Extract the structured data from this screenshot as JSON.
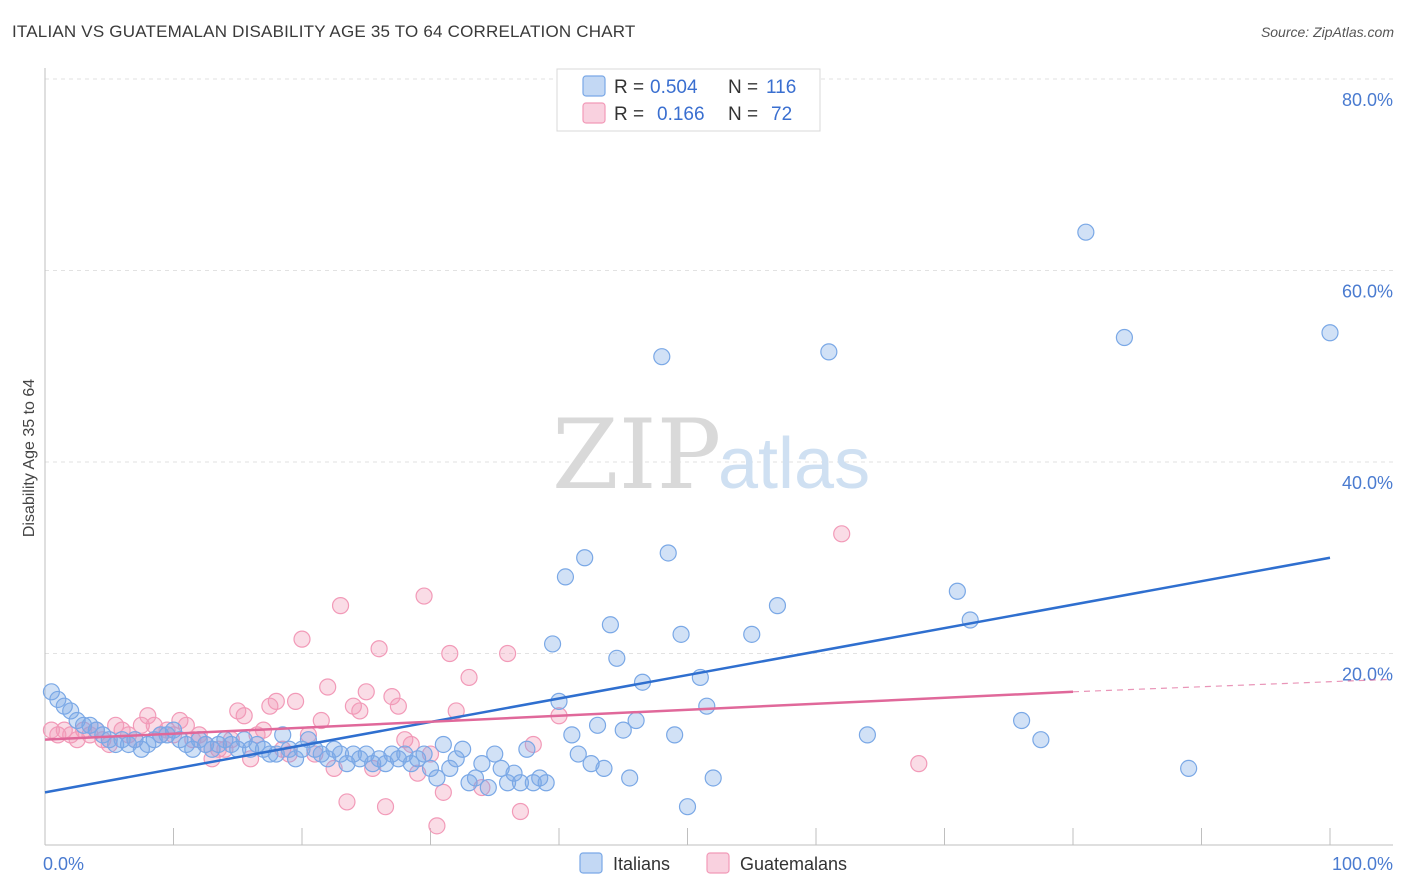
{
  "title": "ITALIAN VS GUATEMALAN DISABILITY AGE 35 TO 64 CORRELATION CHART",
  "source": "Source: ZipAtlas.com",
  "watermark": {
    "zip": "ZIP",
    "atlas": "atlas"
  },
  "colors": {
    "italians": "#7aa8e6",
    "italians_line": "#2f6fcf",
    "guatemalans": "#f29ab8",
    "guatemalans_line": "#e0689a",
    "grid": "#e2e2e2",
    "tick_label": "#4a7bd0"
  },
  "legend": {
    "rows": [
      {
        "r_label": "R =",
        "r_value": "0.504",
        "n_label": "N =",
        "n_value": "116"
      },
      {
        "r_label": "R =",
        "r_value": "0.166",
        "n_label": "N =",
        "n_value": "72"
      }
    ]
  },
  "chart_data": {
    "type": "scatter",
    "title": "ITALIAN VS GUATEMALAN DISABILITY AGE 35 TO 64 CORRELATION CHART",
    "ylabel": "Disability Age 35 to 64",
    "xlabel": "",
    "xlim": [
      0,
      100
    ],
    "ylim": [
      0,
      80
    ],
    "x_ticks": [
      "0.0%",
      "100.0%"
    ],
    "y_ticks": [
      {
        "value": 20,
        "label": "20.0%"
      },
      {
        "value": 40,
        "label": "40.0%"
      },
      {
        "value": 60,
        "label": "60.0%"
      },
      {
        "value": 80,
        "label": "80.0%"
      }
    ],
    "grid": true,
    "legend_position": "top-center",
    "series": [
      {
        "name": "Italians",
        "trend": {
          "x": [
            0,
            100
          ],
          "y": [
            5.5,
            30.0
          ]
        },
        "points": [
          [
            0.5,
            16.0
          ],
          [
            1,
            15.2
          ],
          [
            1.5,
            14.5
          ],
          [
            2,
            14.0
          ],
          [
            2.5,
            13.0
          ],
          [
            3,
            12.5
          ],
          [
            3.5,
            12.5
          ],
          [
            4,
            12.0
          ],
          [
            4.5,
            11.5
          ],
          [
            5,
            11.0
          ],
          [
            5.5,
            10.5
          ],
          [
            6,
            11.0
          ],
          [
            6.5,
            10.5
          ],
          [
            7,
            11.0
          ],
          [
            7.5,
            10.0
          ],
          [
            8,
            10.5
          ],
          [
            8.5,
            11.0
          ],
          [
            9,
            11.5
          ],
          [
            9.5,
            11.5
          ],
          [
            10,
            12.0
          ],
          [
            10.5,
            11.0
          ],
          [
            11,
            10.5
          ],
          [
            11.5,
            10.0
          ],
          [
            12,
            11.0
          ],
          [
            12.5,
            10.5
          ],
          [
            13,
            10.0
          ],
          [
            13.5,
            10.5
          ],
          [
            14,
            11.0
          ],
          [
            14.5,
            10.5
          ],
          [
            15,
            10.0
          ],
          [
            15.5,
            11.0
          ],
          [
            16,
            10.0
          ],
          [
            16.5,
            10.5
          ],
          [
            17,
            10.0
          ],
          [
            17.5,
            9.5
          ],
          [
            18,
            9.5
          ],
          [
            18.5,
            11.5
          ],
          [
            19,
            10.0
          ],
          [
            19.5,
            9.0
          ],
          [
            20,
            10.0
          ],
          [
            20.5,
            11.0
          ],
          [
            21,
            10.0
          ],
          [
            21.5,
            9.5
          ],
          [
            22,
            9.0
          ],
          [
            22.5,
            10.0
          ],
          [
            23,
            9.5
          ],
          [
            23.5,
            8.5
          ],
          [
            24,
            9.5
          ],
          [
            24.5,
            9.0
          ],
          [
            25,
            9.5
          ],
          [
            25.5,
            8.5
          ],
          [
            26,
            9.0
          ],
          [
            26.5,
            8.5
          ],
          [
            27,
            9.5
          ],
          [
            27.5,
            9.0
          ],
          [
            28,
            9.5
          ],
          [
            28.5,
            8.5
          ],
          [
            29,
            9.0
          ],
          [
            29.5,
            9.5
          ],
          [
            30,
            8.0
          ],
          [
            30.5,
            7.0
          ],
          [
            31,
            10.5
          ],
          [
            31.5,
            8.0
          ],
          [
            32,
            9.0
          ],
          [
            32.5,
            10.0
          ],
          [
            33,
            6.5
          ],
          [
            33.5,
            7.0
          ],
          [
            34,
            8.5
          ],
          [
            34.5,
            6.0
          ],
          [
            35,
            9.5
          ],
          [
            35.5,
            8.0
          ],
          [
            36,
            6.5
          ],
          [
            36.5,
            7.5
          ],
          [
            37,
            6.5
          ],
          [
            37.5,
            10.0
          ],
          [
            38,
            6.5
          ],
          [
            38.5,
            7.0
          ],
          [
            39,
            6.5
          ],
          [
            39.5,
            21.0
          ],
          [
            40,
            15.0
          ],
          [
            40.5,
            28.0
          ],
          [
            41,
            11.5
          ],
          [
            41.5,
            9.5
          ],
          [
            42,
            30.0
          ],
          [
            42.5,
            8.5
          ],
          [
            43,
            12.5
          ],
          [
            43.5,
            8.0
          ],
          [
            44,
            23.0
          ],
          [
            44.5,
            19.5
          ],
          [
            45,
            12.0
          ],
          [
            45.5,
            7.0
          ],
          [
            46,
            13.0
          ],
          [
            46.5,
            17.0
          ],
          [
            48,
            51.0
          ],
          [
            48.5,
            30.5
          ],
          [
            49,
            11.5
          ],
          [
            49.5,
            22.0
          ],
          [
            50,
            4.0
          ],
          [
            51,
            17.5
          ],
          [
            51.5,
            14.5
          ],
          [
            52,
            7.0
          ],
          [
            55,
            22.0
          ],
          [
            57,
            25.0
          ],
          [
            61,
            51.5
          ],
          [
            64,
            11.5
          ],
          [
            71,
            26.5
          ],
          [
            72,
            23.5
          ],
          [
            76,
            13.0
          ],
          [
            77.5,
            11.0
          ],
          [
            81,
            64.0
          ],
          [
            84,
            53.0
          ],
          [
            89,
            8.0
          ],
          [
            100,
            53.5
          ]
        ]
      },
      {
        "name": "Guatemalans",
        "trend": {
          "x": [
            0,
            80
          ],
          "y": [
            11.0,
            16.0
          ],
          "dashed_to": {
            "x": 100,
            "y": 17.3
          }
        },
        "points": [
          [
            0.5,
            12.0
          ],
          [
            1,
            11.5
          ],
          [
            1.5,
            12.0
          ],
          [
            2,
            11.5
          ],
          [
            2.5,
            11.0
          ],
          [
            3,
            12.0
          ],
          [
            3.5,
            11.5
          ],
          [
            4,
            12.0
          ],
          [
            4.5,
            11.0
          ],
          [
            5,
            10.5
          ],
          [
            5.5,
            12.5
          ],
          [
            6,
            12.0
          ],
          [
            6.5,
            11.5
          ],
          [
            7,
            11.0
          ],
          [
            7.5,
            12.5
          ],
          [
            8,
            13.5
          ],
          [
            8.5,
            12.5
          ],
          [
            9,
            11.5
          ],
          [
            9.5,
            12.0
          ],
          [
            10,
            11.5
          ],
          [
            10.5,
            13.0
          ],
          [
            11,
            12.5
          ],
          [
            11.5,
            11.0
          ],
          [
            12,
            11.5
          ],
          [
            12.5,
            10.5
          ],
          [
            13,
            9.0
          ],
          [
            13.5,
            10.0
          ],
          [
            14,
            10.0
          ],
          [
            14.5,
            11.0
          ],
          [
            15,
            14.0
          ],
          [
            15.5,
            13.5
          ],
          [
            16,
            9.0
          ],
          [
            16.5,
            11.5
          ],
          [
            17,
            12.0
          ],
          [
            17.5,
            14.5
          ],
          [
            18,
            15.0
          ],
          [
            18.5,
            10.0
          ],
          [
            19,
            9.5
          ],
          [
            19.5,
            15.0
          ],
          [
            20,
            21.5
          ],
          [
            20.5,
            11.5
          ],
          [
            21,
            9.5
          ],
          [
            21.5,
            13.0
          ],
          [
            22,
            16.5
          ],
          [
            22.5,
            8.0
          ],
          [
            23,
            25.0
          ],
          [
            23.5,
            4.5
          ],
          [
            24,
            14.5
          ],
          [
            24.5,
            14.0
          ],
          [
            25,
            16.0
          ],
          [
            25.5,
            8.0
          ],
          [
            26,
            20.5
          ],
          [
            26.5,
            4.0
          ],
          [
            27,
            15.5
          ],
          [
            27.5,
            14.5
          ],
          [
            28,
            11.0
          ],
          [
            28.5,
            10.5
          ],
          [
            29,
            7.5
          ],
          [
            29.5,
            26.0
          ],
          [
            30,
            9.5
          ],
          [
            30.5,
            2.0
          ],
          [
            31,
            5.5
          ],
          [
            31.5,
            20.0
          ],
          [
            32,
            14.0
          ],
          [
            33,
            17.5
          ],
          [
            34,
            6.0
          ],
          [
            36,
            20.0
          ],
          [
            37,
            3.5
          ],
          [
            38,
            10.5
          ],
          [
            40,
            13.5
          ],
          [
            62,
            32.5
          ],
          [
            68,
            8.5
          ]
        ]
      }
    ]
  },
  "bottom_legend": [
    {
      "label": "Italians"
    },
    {
      "label": "Guatemalans"
    }
  ]
}
